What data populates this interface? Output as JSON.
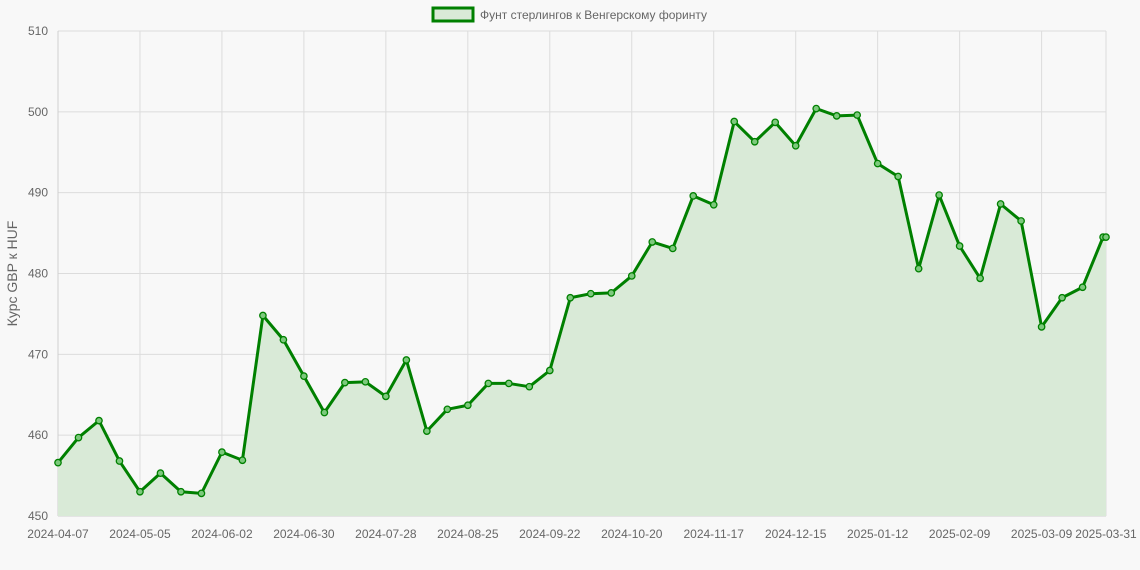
{
  "chart_data": {
    "type": "line",
    "title": "",
    "legend_position": "top",
    "xlabel": "",
    "ylabel": "Курс GBP к HUF",
    "ylim": [
      450,
      510
    ],
    "yticks": [
      450,
      460,
      470,
      480,
      490,
      500,
      510
    ],
    "grid": true,
    "fill": true,
    "series": [
      {
        "name": "Фунт стерлингов к Венгерскому форинту",
        "color": "#008000",
        "fill_color": "#d9ead7",
        "x": [
          "2024-04-07",
          "2024-04-14",
          "2024-04-21",
          "2024-04-28",
          "2024-05-05",
          "2024-05-12",
          "2024-05-19",
          "2024-05-26",
          "2024-06-02",
          "2024-06-09",
          "2024-06-16",
          "2024-06-23",
          "2024-06-30",
          "2024-07-07",
          "2024-07-14",
          "2024-07-21",
          "2024-07-28",
          "2024-08-04",
          "2024-08-11",
          "2024-08-18",
          "2024-08-25",
          "2024-09-01",
          "2024-09-08",
          "2024-09-15",
          "2024-09-22",
          "2024-09-29",
          "2024-10-06",
          "2024-10-13",
          "2024-10-20",
          "2024-10-27",
          "2024-11-03",
          "2024-11-10",
          "2024-11-17",
          "2024-11-24",
          "2024-12-01",
          "2024-12-08",
          "2024-12-15",
          "2024-12-22",
          "2024-12-29",
          "2025-01-05",
          "2025-01-12",
          "2025-01-19",
          "2025-01-26",
          "2025-02-02",
          "2025-02-09",
          "2025-02-16",
          "2025-02-23",
          "2025-03-02",
          "2025-03-09",
          "2025-03-16",
          "2025-03-23",
          "2025-03-30",
          "2025-03-31"
        ],
        "values": [
          456.6,
          459.7,
          461.8,
          456.8,
          453.0,
          455.3,
          453.0,
          452.8,
          457.9,
          456.9,
          474.8,
          471.8,
          467.3,
          462.8,
          466.5,
          466.6,
          464.8,
          469.3,
          460.5,
          463.2,
          463.7,
          466.4,
          466.4,
          466.0,
          468.0,
          477.0,
          477.5,
          477.6,
          479.7,
          483.9,
          483.1,
          489.6,
          488.5,
          498.8,
          496.3,
          498.7,
          495.8,
          500.4,
          499.5,
          499.6,
          493.6,
          492.0,
          480.6,
          489.7,
          483.4,
          479.4,
          488.6,
          486.5,
          473.4,
          477.0,
          478.3,
          484.5,
          484.5
        ]
      }
    ],
    "xtick_labels": [
      "2024-04-07",
      "2024-05-05",
      "2024-06-02",
      "2024-06-30",
      "2024-07-28",
      "2024-08-25",
      "2024-09-22",
      "2024-10-20",
      "2024-11-17",
      "2024-12-15",
      "2025-01-12",
      "2025-02-09",
      "2025-03-09",
      "2025-03-31"
    ]
  }
}
